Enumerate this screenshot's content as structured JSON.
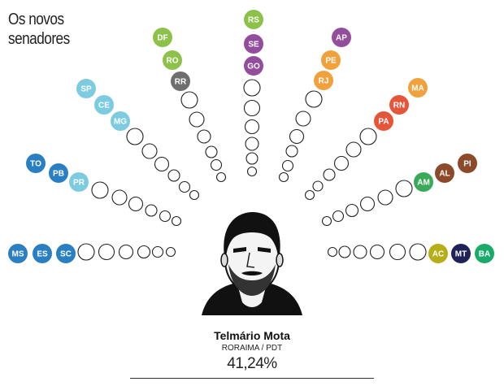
{
  "title": "Os novos senadores",
  "highlight": {
    "name": "Telmário Mota",
    "party": "RORAIMA / PDT",
    "percent": "41,24%"
  },
  "colors": {
    "dark_blue": "#2a7fc2",
    "light_blue": "#7ccbe1",
    "light_green": "#8cc14a",
    "gray": "#6e6e6e",
    "purple": "#944c9c",
    "orange": "#f0a13b",
    "red": "#e5553a",
    "green": "#3aaa59",
    "brown": "#8d4a2a",
    "olive": "#b5ae18",
    "navy": "#1f2258",
    "teal": "#1aaa6a"
  },
  "rays": [
    {
      "badges": [
        {
          "label": "MS",
          "color": "dark_blue"
        },
        {
          "label": "ES",
          "color": "dark_blue"
        },
        {
          "label": "SC",
          "color": "dark_blue"
        }
      ]
    },
    {
      "badges": [
        {
          "label": "TO",
          "color": "dark_blue"
        },
        {
          "label": "PB",
          "color": "dark_blue"
        },
        {
          "label": "PR",
          "color": "light_blue"
        }
      ]
    },
    {
      "badges": [
        {
          "label": "SP",
          "color": "light_blue"
        },
        {
          "label": "CE",
          "color": "light_blue"
        },
        {
          "label": "MG",
          "color": "light_blue"
        }
      ]
    },
    {
      "badges": [
        {
          "label": "DF",
          "color": "light_green"
        },
        {
          "label": "RO",
          "color": "light_green"
        },
        {
          "label": "RR",
          "color": "gray"
        }
      ]
    },
    {
      "badges": [
        {
          "label": "RS",
          "color": "light_green"
        },
        {
          "label": "SE",
          "color": "purple"
        },
        {
          "label": "GO",
          "color": "purple"
        }
      ]
    },
    {
      "badges": [
        {
          "label": "AP",
          "color": "purple"
        },
        {
          "label": "PE",
          "color": "orange"
        },
        {
          "label": "RJ",
          "color": "orange"
        }
      ]
    },
    {
      "badges": [
        {
          "label": "MA",
          "color": "orange"
        },
        {
          "label": "RN",
          "color": "red"
        },
        {
          "label": "PA",
          "color": "red"
        }
      ]
    },
    {
      "badges": [
        {
          "label": "PI",
          "color": "brown"
        },
        {
          "label": "AL",
          "color": "brown"
        },
        {
          "label": "AM",
          "color": "green"
        }
      ]
    },
    {
      "badges": [
        {
          "label": "BA",
          "color": "teal"
        },
        {
          "label": "MT",
          "color": "navy"
        },
        {
          "label": "AC",
          "color": "olive"
        }
      ]
    }
  ]
}
